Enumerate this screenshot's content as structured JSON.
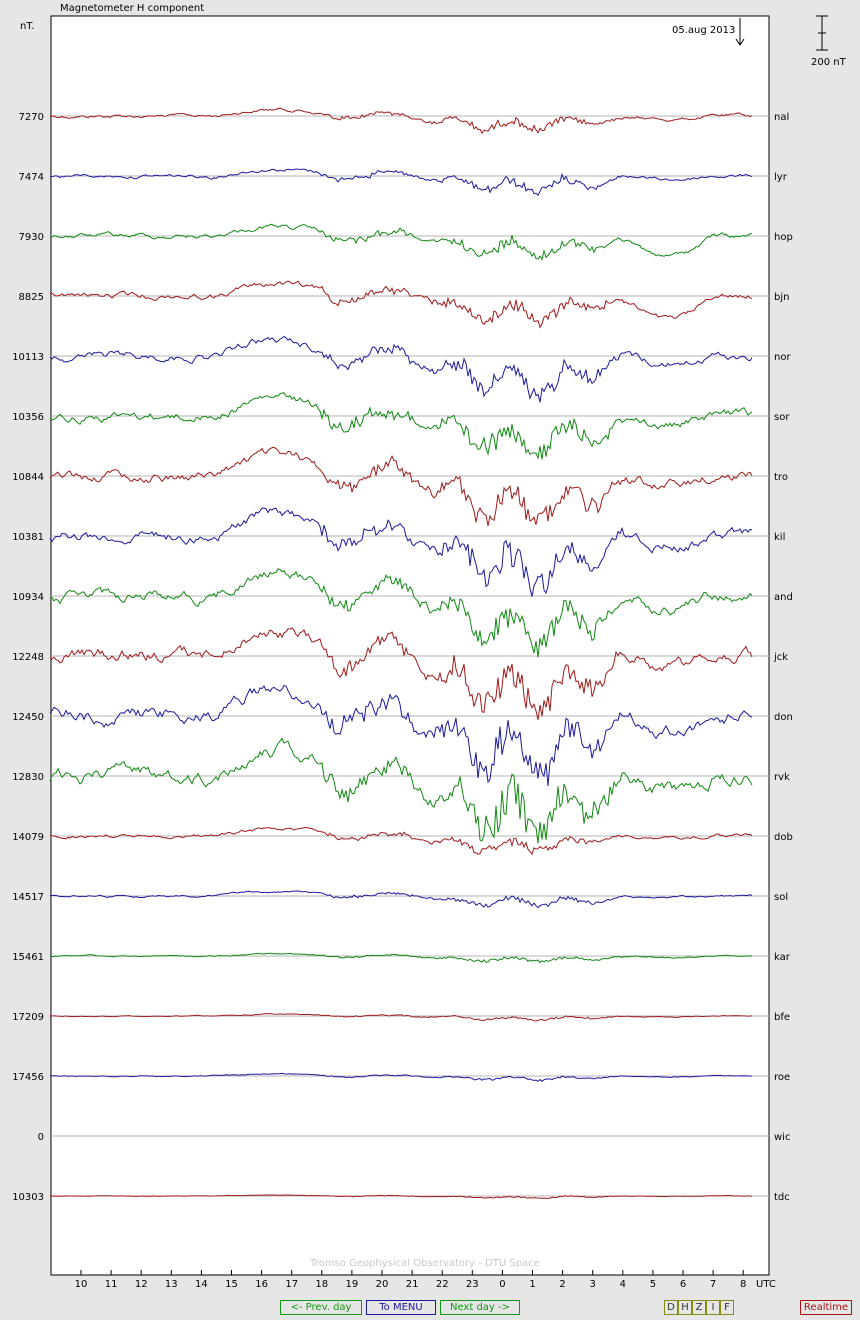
{
  "title": "Magnetometer H component",
  "y_unit": "nT.",
  "date_label": "05.aug 2013",
  "scale_bar_label": "200 nT",
  "credit": "Tromso Geophysical Observatory - DTU Space",
  "nav": {
    "prev": "<- Prev. day",
    "menu": "To MENU",
    "next": "Next day ->"
  },
  "components": [
    "D",
    "H",
    "Z",
    "I",
    "F"
  ],
  "realtime": "Realtime",
  "chart_data": {
    "type": "line",
    "x_axis_label": "UTC",
    "x_ticks": [
      "10",
      "11",
      "12",
      "13",
      "14",
      "15",
      "16",
      "17",
      "18",
      "19",
      "20",
      "21",
      "22",
      "23",
      "0",
      "1",
      "2",
      "3",
      "4",
      "5",
      "6",
      "7",
      "8"
    ],
    "colors": {
      "red": "#a01a1a",
      "blue": "#1a1aa0",
      "green": "#118811"
    },
    "stations": [
      {
        "name": "nal",
        "baseline": 7270,
        "color": "red",
        "activity": 0.55
      },
      {
        "name": "lyr",
        "baseline": 7474,
        "color": "blue",
        "activity": 0.6
      },
      {
        "name": "hop",
        "baseline": 7930,
        "color": "green",
        "activity": 0.8
      },
      {
        "name": "bjn",
        "baseline": 8825,
        "color": "red",
        "activity": 1.0
      },
      {
        "name": "nor",
        "baseline": 10113,
        "color": "blue",
        "activity": 1.3
      },
      {
        "name": "sor",
        "baseline": 10356,
        "color": "green",
        "activity": 1.5
      },
      {
        "name": "tro",
        "baseline": 10844,
        "color": "red",
        "activity": 1.7
      },
      {
        "name": "kil",
        "baseline": 10381,
        "color": "blue",
        "activity": 1.8
      },
      {
        "name": "and",
        "baseline": 10934,
        "color": "green",
        "activity": 1.9
      },
      {
        "name": "jck",
        "baseline": 12248,
        "color": "red",
        "activity": 2.1
      },
      {
        "name": "don",
        "baseline": 12450,
        "color": "blue",
        "activity": 2.3
      },
      {
        "name": "rvk",
        "baseline": 12830,
        "color": "green",
        "activity": 2.4
      },
      {
        "name": "dob",
        "baseline": 14079,
        "color": "red",
        "activity": 0.6
      },
      {
        "name": "sol",
        "baseline": 14517,
        "color": "blue",
        "activity": 0.35
      },
      {
        "name": "kar",
        "baseline": 15461,
        "color": "green",
        "activity": 0.2
      },
      {
        "name": "bfe",
        "baseline": 17209,
        "color": "red",
        "activity": 0.15
      },
      {
        "name": "roe",
        "baseline": 17456,
        "color": "blue",
        "activity": 0.15
      },
      {
        "name": "wic",
        "baseline": 0,
        "color": "none",
        "activity": 0
      },
      {
        "name": "tdc",
        "baseline": 10303,
        "color": "red",
        "activity": 0.08
      }
    ]
  }
}
